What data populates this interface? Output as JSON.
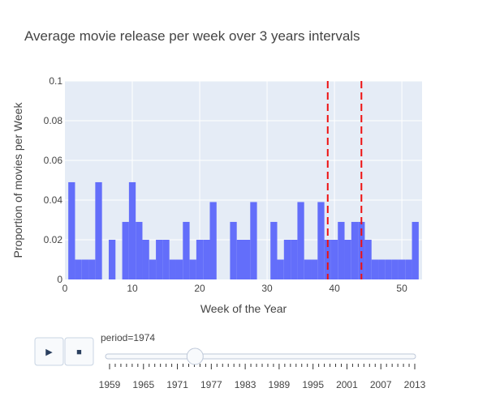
{
  "chart_data": {
    "type": "bar",
    "title": "Average movie release per week over 3 years intervals",
    "xlabel": "Week of the Year",
    "ylabel": "Proportion of movies per Week",
    "xlim": [
      0,
      53
    ],
    "ylim": [
      0,
      0.1
    ],
    "xticks": [
      0,
      10,
      20,
      30,
      40,
      50
    ],
    "yticks": [
      0,
      0.02,
      0.04,
      0.06,
      0.08,
      0.1
    ],
    "ytick_labels": [
      "0",
      "0.02",
      "0.04",
      "0.06",
      "0.08",
      "0.1"
    ],
    "weeks": [
      1,
      2,
      3,
      4,
      5,
      6,
      7,
      8,
      9,
      10,
      11,
      12,
      13,
      14,
      15,
      16,
      17,
      18,
      19,
      20,
      21,
      22,
      23,
      24,
      25,
      26,
      27,
      28,
      29,
      30,
      31,
      32,
      33,
      34,
      35,
      36,
      37,
      38,
      39,
      40,
      41,
      42,
      43,
      44,
      45,
      46,
      47,
      48,
      49,
      50,
      51,
      52
    ],
    "values": [
      0.049,
      0.01,
      0.01,
      0.01,
      0.049,
      0,
      0.02,
      0,
      0.029,
      0.049,
      0.029,
      0.02,
      0.01,
      0.02,
      0.02,
      0.01,
      0.01,
      0.029,
      0.01,
      0.02,
      0.02,
      0.039,
      0,
      0,
      0.029,
      0.02,
      0.02,
      0.039,
      0,
      0,
      0.029,
      0.01,
      0.02,
      0.02,
      0.039,
      0.01,
      0.01,
      0.039,
      0.02,
      0.02,
      0.029,
      0.02,
      0.029,
      0.029,
      0.02,
      0.01,
      0.01,
      0.01,
      0.01,
      0.01,
      0.01,
      0.029
    ],
    "bar_color": "#636efa",
    "vlines": [
      {
        "x": 39,
        "color": "#ee1111",
        "style": "dash"
      },
      {
        "x": 44,
        "color": "#ee1111",
        "style": "dash"
      }
    ],
    "plot_bg": "#e5ecf6",
    "grid": true
  },
  "slider": {
    "current_label": "period=1974",
    "tick_labels": [
      "1959",
      "1965",
      "1971",
      "1977",
      "1983",
      "1989",
      "1995",
      "2001",
      "2007",
      "2013"
    ],
    "value_fraction": 0.28
  },
  "controls": {
    "play_icon": "play-icon",
    "stop_icon": "stop-icon",
    "play_glyph": "▶",
    "stop_glyph": "■"
  }
}
